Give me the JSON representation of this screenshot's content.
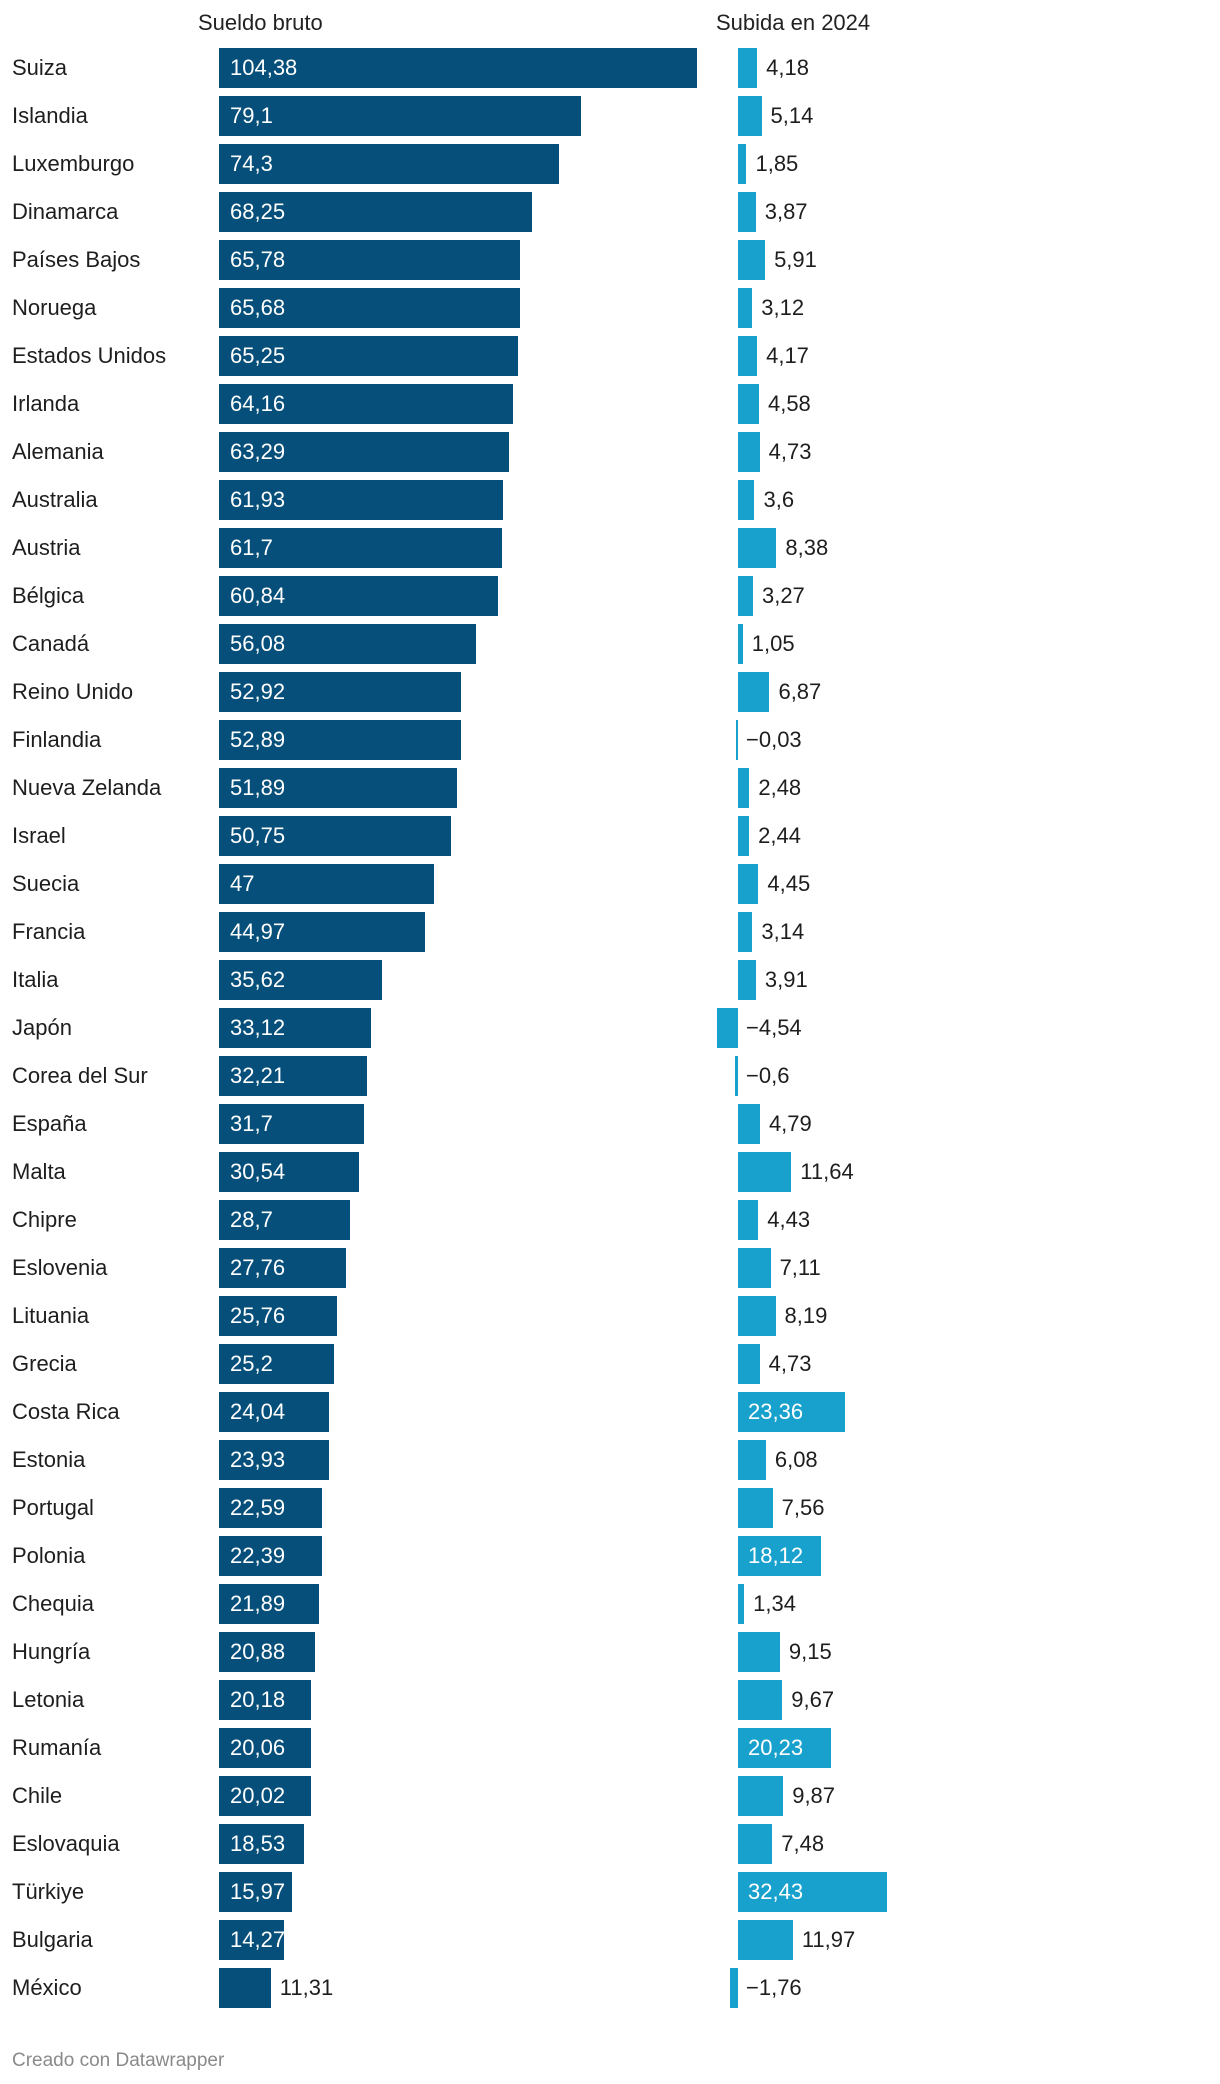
{
  "chart_data": {
    "type": "bar",
    "orientation": "horizontal",
    "columns": [
      {
        "key": "sueldo",
        "title": "Sueldo bruto",
        "color": "#054f7a"
      },
      {
        "key": "subida",
        "title": "Subida en 2024",
        "color": "#18a1cd"
      }
    ],
    "categories": [
      "Suiza",
      "Islandia",
      "Luxemburgo",
      "Dinamarca",
      "Países Bajos",
      "Noruega",
      "Estados Unidos",
      "Irlanda",
      "Alemania",
      "Australia",
      "Austria",
      "Bélgica",
      "Canadá",
      "Reino Unido",
      "Finlandia",
      "Nueva Zelanda",
      "Israel",
      "Suecia",
      "Francia",
      "Italia",
      "Japón",
      "Corea del Sur",
      "España",
      "Malta",
      "Chipre",
      "Eslovenia",
      "Lituania",
      "Grecia",
      "Costa Rica",
      "Estonia",
      "Portugal",
      "Polonia",
      "Chequia",
      "Hungría",
      "Letonia",
      "Rumanía",
      "Chile",
      "Eslovaquia",
      "Türkiye",
      "Bulgaria",
      "México"
    ],
    "series": [
      {
        "name": "Sueldo bruto",
        "values": [
          104.38,
          79.1,
          74.3,
          68.25,
          65.78,
          65.68,
          65.25,
          64.16,
          63.29,
          61.93,
          61.7,
          60.84,
          56.08,
          52.92,
          52.89,
          51.89,
          50.75,
          47,
          44.97,
          35.62,
          33.12,
          32.21,
          31.7,
          30.54,
          28.7,
          27.76,
          25.76,
          25.2,
          24.04,
          23.93,
          22.59,
          22.39,
          21.89,
          20.88,
          20.18,
          20.06,
          20.02,
          18.53,
          15.97,
          14.27,
          11.31
        ],
        "labels": [
          "104,38",
          "79,1",
          "74,3",
          "68,25",
          "65,78",
          "65,68",
          "65,25",
          "64,16",
          "63,29",
          "61,93",
          "61,7",
          "60,84",
          "56,08",
          "52,92",
          "52,89",
          "51,89",
          "50,75",
          "47",
          "44,97",
          "35,62",
          "33,12",
          "32,21",
          "31,7",
          "30,54",
          "28,7",
          "27,76",
          "25,76",
          "25,2",
          "24,04",
          "23,93",
          "22,59",
          "22,39",
          "21,89",
          "20,88",
          "20,18",
          "20,06",
          "20,02",
          "18,53",
          "15,97",
          "14,27",
          "11,31"
        ]
      },
      {
        "name": "Subida en 2024",
        "values": [
          4.18,
          5.14,
          1.85,
          3.87,
          5.91,
          3.12,
          4.17,
          4.58,
          4.73,
          3.6,
          8.38,
          3.27,
          1.05,
          6.87,
          -0.03,
          2.48,
          2.44,
          4.45,
          3.14,
          3.91,
          -4.54,
          -0.6,
          4.79,
          11.64,
          4.43,
          7.11,
          8.19,
          4.73,
          23.36,
          6.08,
          7.56,
          18.12,
          1.34,
          9.15,
          9.67,
          20.23,
          9.87,
          7.48,
          32.43,
          11.97,
          -1.76
        ],
        "labels": [
          "4,18",
          "5,14",
          "1,85",
          "3,87",
          "5,91",
          "3,12",
          "4,17",
          "4,58",
          "4,73",
          "3,6",
          "8,38",
          "3,27",
          "1,05",
          "6,87",
          "−0,03",
          "2,48",
          "2,44",
          "4,45",
          "3,14",
          "3,91",
          "−4,54",
          "−0,6",
          "4,79",
          "11,64",
          "4,43",
          "7,11",
          "8,19",
          "4,73",
          "23,36",
          "6,08",
          "7,56",
          "18,12",
          "1,34",
          "9,15",
          "9,67",
          "20,23",
          "9,87",
          "7,48",
          "32,43",
          "11,97",
          "−1,76"
        ]
      }
    ]
  },
  "footer": "Creado con Datawrapper"
}
